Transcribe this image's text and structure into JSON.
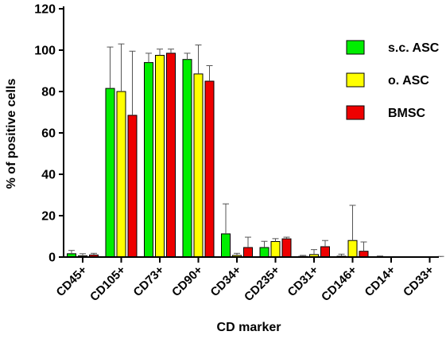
{
  "chart_data": {
    "type": "bar",
    "title": "",
    "xlabel": "CD marker",
    "ylabel": "% of positive cells",
    "ylim": [
      0,
      120
    ],
    "yticks": [
      0,
      20,
      40,
      60,
      80,
      100,
      120
    ],
    "grid": false,
    "legend_position": "top-right",
    "error_bars": true,
    "categories": [
      "CD45+",
      "CD105+",
      "CD73+",
      "CD90+",
      "CD34+",
      "CD235+",
      "CD31+",
      "CD146+",
      "CD14+",
      "CD33+"
    ],
    "series": [
      {
        "name": "s.c. ASC",
        "color": "#00ee00",
        "values": [
          1.6,
          81.5,
          94.0,
          95.5,
          11.2,
          4.6,
          0.3,
          0.4,
          0.0,
          0.0
        ],
        "errors": [
          1.6,
          20.0,
          4.5,
          3.0,
          14.5,
          3.0,
          0.5,
          1.0,
          0.5,
          0.0
        ]
      },
      {
        "name": "o. ASC",
        "color": "#ffff00",
        "values": [
          0.6,
          80.0,
          97.5,
          88.5,
          0.8,
          7.5,
          1.2,
          8.0,
          0.0,
          0.0
        ],
        "errors": [
          1.0,
          23.0,
          3.0,
          14.0,
          1.0,
          1.4,
          2.4,
          17.0,
          0.0,
          0.0
        ]
      },
      {
        "name": "BMSC",
        "color": "#ee0000",
        "values": [
          1.0,
          68.5,
          98.5,
          85.0,
          4.6,
          8.8,
          5.0,
          2.8,
          0.0,
          0.0
        ],
        "errors": [
          0.8,
          31.0,
          2.0,
          7.5,
          5.0,
          0.8,
          3.0,
          4.5,
          0.0,
          0.3
        ]
      }
    ]
  }
}
